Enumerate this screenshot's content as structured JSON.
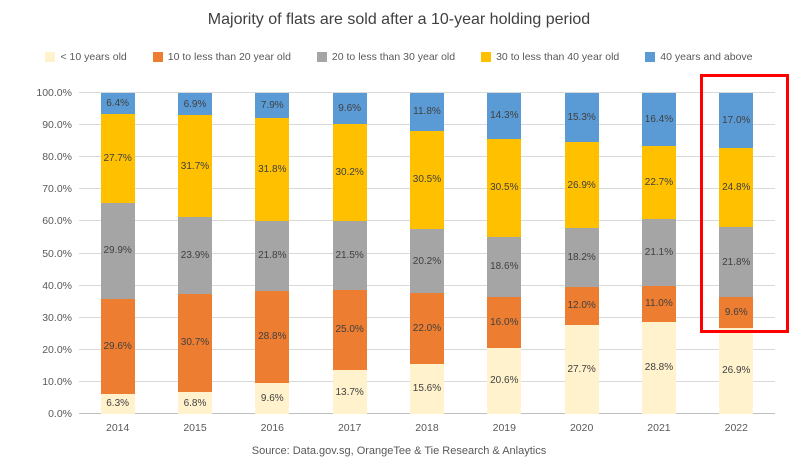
{
  "title": "Majority of flats are sold after a 10-year holding period",
  "source": "Source: Data.gov.sg, OrangeTee & Tie Research & Anlaytics",
  "chart_data": {
    "type": "bar",
    "stacked": true,
    "title": "Majority of flats are sold after a 10-year holding period",
    "categories": [
      "2014",
      "2015",
      "2016",
      "2017",
      "2018",
      "2019",
      "2020",
      "2021",
      "2022"
    ],
    "series": [
      {
        "name": "< 10 years old",
        "color": "#FFF2CC",
        "values": [
          6.3,
          6.8,
          9.6,
          13.7,
          15.6,
          20.6,
          27.7,
          28.8,
          26.9
        ]
      },
      {
        "name": "10 to less than 20 year old",
        "color": "#ED7D31",
        "values": [
          29.6,
          30.7,
          28.8,
          25.0,
          22.0,
          16.0,
          12.0,
          11.0,
          9.6
        ]
      },
      {
        "name": "20 to less than 30 year old",
        "color": "#A5A5A5",
        "values": [
          29.9,
          23.9,
          21.8,
          21.5,
          20.2,
          18.6,
          18.2,
          21.1,
          21.8
        ]
      },
      {
        "name": "30 to less than 40 year old",
        "color": "#FFC000",
        "values": [
          27.7,
          31.7,
          31.8,
          30.2,
          30.5,
          30.5,
          26.9,
          22.7,
          24.8
        ]
      },
      {
        "name": "40 years and above",
        "color": "#5B9BD5",
        "values": [
          6.4,
          6.9,
          7.9,
          9.6,
          11.8,
          14.3,
          15.3,
          16.4,
          17.0
        ]
      }
    ],
    "ylim": [
      0,
      100
    ],
    "ytick_labels": [
      "0.0%",
      "10.0%",
      "20.0%",
      "30.0%",
      "40.0%",
      "50.0%",
      "60.0%",
      "70.0%",
      "80.0%",
      "90.0%",
      "100.0%"
    ],
    "value_suffix": "%",
    "grid": true,
    "legend_position": "top",
    "xlabel": "",
    "ylabel": "",
    "highlight": {
      "category": "2022",
      "style": "red box around 2022 bar"
    }
  },
  "colors": {
    "background": "#FFFFFF",
    "highlight_box": "#FF0000",
    "gridline": "#D9D9D9",
    "axis_line": "#BFBFBF",
    "title_text": "#404040",
    "axis_text": "#595959",
    "data_label_text": "#404040"
  }
}
